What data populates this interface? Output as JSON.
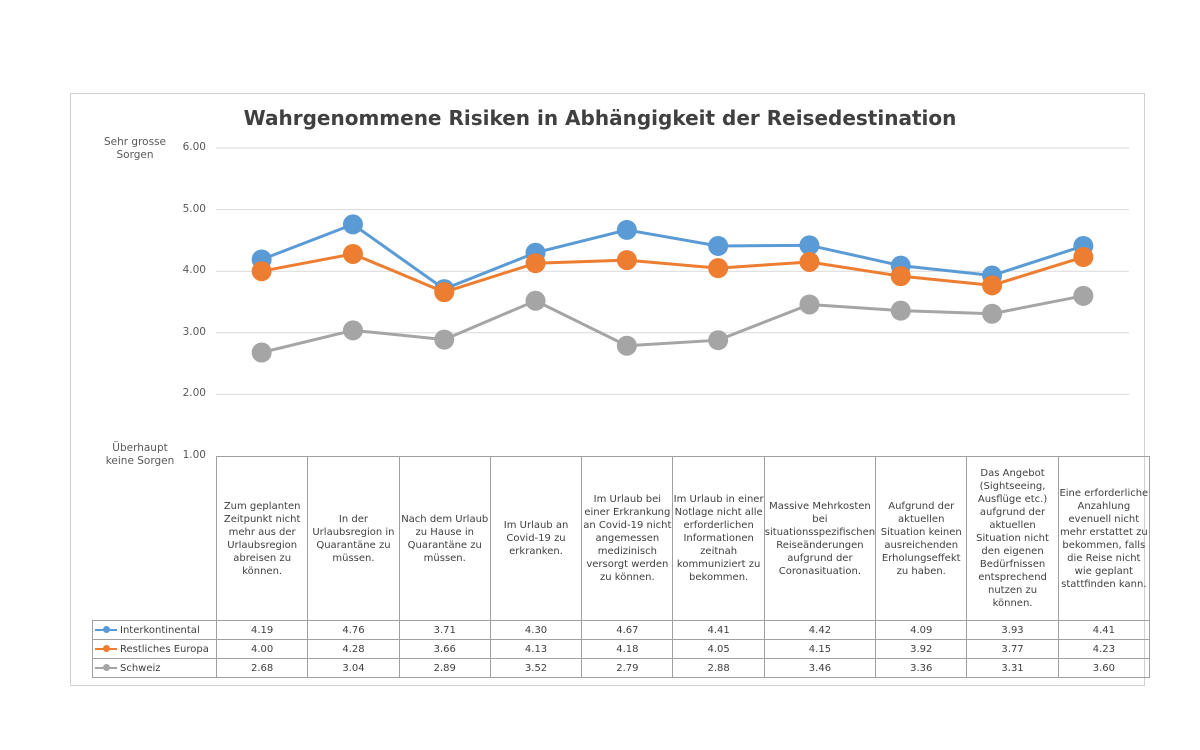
{
  "chart_data": {
    "type": "line",
    "title": "Wahrgenommene Risiken in Abhängigkeit der Reisedestination",
    "ylabel_top": "Sehr grosse Sorgen",
    "ylabel_bottom": "Überhaupt keine Sorgen",
    "ylim": [
      1,
      6
    ],
    "yticks": [
      "1.00",
      "2.00",
      "3.00",
      "4.00",
      "5.00",
      "6.00"
    ],
    "grid": true,
    "legend": "data-table-left",
    "categories": [
      "Zum geplanten Zeitpunkt nicht mehr aus der Urlaubsregion abreisen zu können.",
      "In der Urlaubsregion in Quarantäne zu müssen.",
      "Nach dem Urlaub zu Hause in Quarantäne zu müssen.",
      "Im Urlaub an Covid-19 zu erkranken.",
      "Im Urlaub bei einer Erkrankung an Covid-19 nicht angemessen medizinisch versorgt werden zu können.",
      "Im Urlaub in einer Notlage nicht alle erforderlichen Informationen zeitnah kommuniziert zu bekommen.",
      "Massive Mehrkosten bei situationsspezifischen Reiseänderungen aufgrund der Coronasituation.",
      "Aufgrund der aktuellen Situation keinen ausreichenden Erholungseffekt zu haben.",
      "Das Angebot (Sightseeing, Ausflüge etc.) aufgrund der aktuellen Situation nicht den eigenen Bedürfnissen entsprechend nutzen zu können.",
      "Eine erforderliche Anzahlung evenuell nicht mehr erstattet zu bekommen, falls die Reise nicht wie geplant stattfinden kann."
    ],
    "series": [
      {
        "name": "Interkontinental",
        "color": "#5B9BD5",
        "values": [
          4.19,
          4.76,
          3.71,
          4.3,
          4.67,
          4.41,
          4.42,
          4.09,
          3.93,
          4.41
        ],
        "labels": [
          "4.19",
          "4.76",
          "3.71",
          "4.30",
          "4.67",
          "4.41",
          "4.42",
          "4.09",
          "3.93",
          "4.41"
        ]
      },
      {
        "name": "Restliches Europa",
        "color": "#ED7D31",
        "values": [
          4.0,
          4.28,
          3.66,
          4.13,
          4.18,
          4.05,
          4.15,
          3.92,
          3.77,
          4.23
        ],
        "labels": [
          "4.00",
          "4.28",
          "3.66",
          "4.13",
          "4.18",
          "4.05",
          "4.15",
          "3.92",
          "3.77",
          "4.23"
        ]
      },
      {
        "name": "Schweiz",
        "color": "#A5A5A5",
        "values": [
          2.68,
          3.04,
          2.89,
          3.52,
          2.79,
          2.88,
          3.46,
          3.36,
          3.31,
          3.6
        ],
        "labels": [
          "2.68",
          "3.04",
          "2.89",
          "3.52",
          "2.79",
          "2.88",
          "3.46",
          "3.36",
          "3.31",
          "3.60"
        ]
      }
    ]
  }
}
